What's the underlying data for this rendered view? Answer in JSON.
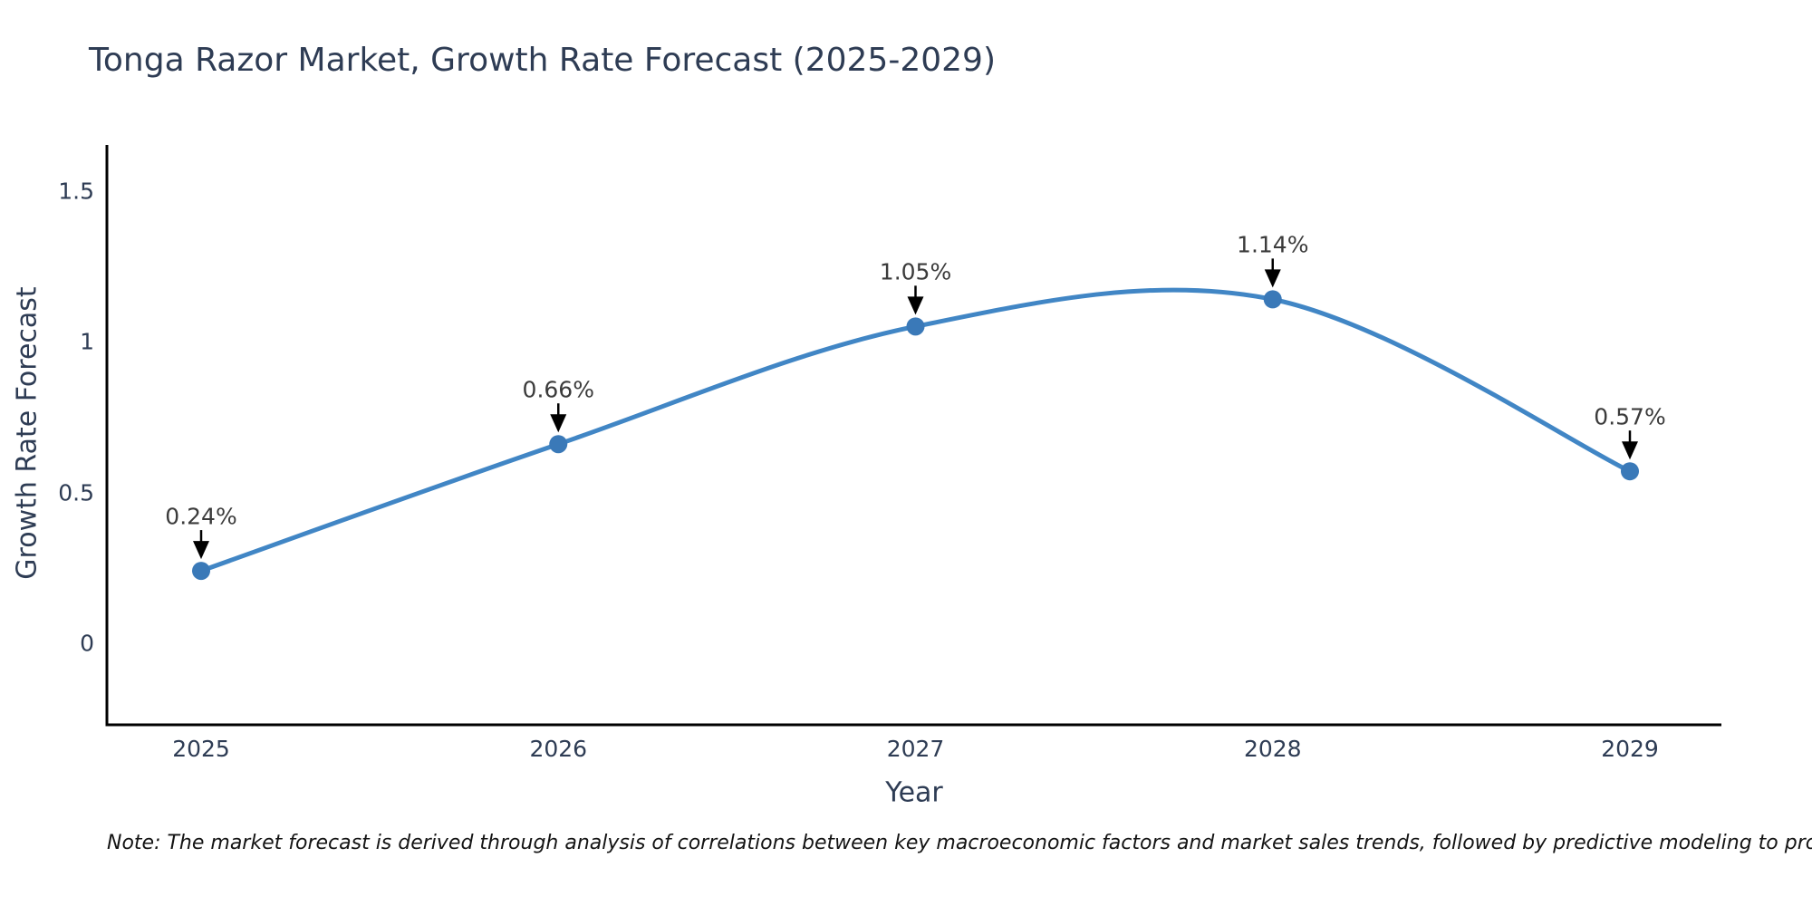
{
  "title": "Tonga Razor Market, Growth Rate Forecast (2025-2029)",
  "note": "Note: The market forecast is derived through analysis of correlations between key macroeconomic factors and market sales trends, followed by predictive modeling to project future sales",
  "chart_data": {
    "type": "line",
    "line_shape": "spline",
    "title": "Tonga Razor Market, Growth Rate Forecast (2025-2029)",
    "xlabel": "Year",
    "ylabel": "Growth Rate Forecast",
    "x": [
      2025,
      2026,
      2027,
      2028,
      2029
    ],
    "y": [
      0.24,
      0.66,
      1.05,
      1.14,
      0.57
    ],
    "point_labels": [
      "0.24%",
      "0.66%",
      "1.05%",
      "1.14%",
      "0.57%"
    ],
    "xtick_labels": [
      "2025",
      "2026",
      "2027",
      "2028",
      "2029"
    ],
    "ytick_values": [
      0,
      0.5,
      1,
      1.5
    ],
    "ytick_labels": [
      "0",
      "0.5",
      "1",
      "1.5"
    ],
    "ylim": [
      -0.27,
      1.65
    ],
    "grid": false,
    "legend": false,
    "annotations_have_arrows": true,
    "colors": {
      "line": "#4186c5",
      "marker": "#3a79b8",
      "axis": "#000000",
      "axis_text": "#2e3c54",
      "annotation_text": "#3b3b3b",
      "arrow": "#000000",
      "background": "#ffffff"
    }
  }
}
